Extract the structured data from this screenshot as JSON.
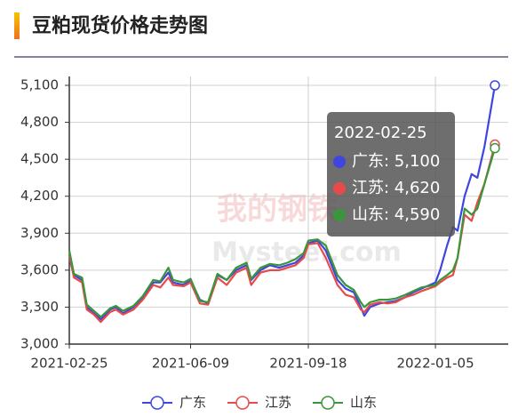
{
  "chart_data": {
    "type": "line",
    "title": "豆粕现货价格走势图",
    "x": [
      "2021-02-25",
      "2021-03-01",
      "2021-03-08",
      "2021-03-12",
      "2021-03-18",
      "2021-03-24",
      "2021-04-01",
      "2021-04-06",
      "2021-04-12",
      "2021-04-21",
      "2021-04-29",
      "2021-05-08",
      "2021-05-14",
      "2021-05-21",
      "2021-05-25",
      "2021-06-03",
      "2021-06-09",
      "2021-06-17",
      "2021-06-24",
      "2021-07-02",
      "2021-07-10",
      "2021-07-18",
      "2021-07-27",
      "2021-07-31",
      "2021-08-08",
      "2021-08-16",
      "2021-08-24",
      "2021-08-31",
      "2021-09-07",
      "2021-09-14",
      "2021-09-18",
      "2021-09-26",
      "2021-10-03",
      "2021-10-13",
      "2021-10-20",
      "2021-10-27",
      "2021-11-02",
      "2021-11-05",
      "2021-11-10",
      "2021-11-18",
      "2021-11-25",
      "2021-12-02",
      "2021-12-10",
      "2021-12-17",
      "2021-12-24",
      "2022-01-05",
      "2022-01-09",
      "2022-01-15",
      "2022-01-20",
      "2022-01-24",
      "2022-01-30",
      "2022-02-05",
      "2022-02-10",
      "2022-02-16",
      "2022-02-25"
    ],
    "series": [
      {
        "name": "广东",
        "color": "#3f46e0",
        "values": [
          3700,
          3560,
          3520,
          3300,
          3250,
          3200,
          3280,
          3300,
          3250,
          3300,
          3380,
          3500,
          3500,
          3580,
          3500,
          3480,
          3520,
          3360,
          3330,
          3560,
          3520,
          3600,
          3640,
          3520,
          3600,
          3640,
          3620,
          3640,
          3660,
          3720,
          3820,
          3840,
          3760,
          3520,
          3450,
          3420,
          3300,
          3230,
          3300,
          3330,
          3340,
          3350,
          3380,
          3420,
          3450,
          3500,
          3600,
          3800,
          3950,
          3920,
          4200,
          4380,
          4350,
          4600,
          5100
        ]
      },
      {
        "name": "江苏",
        "color": "#e84a4a",
        "values": [
          3720,
          3540,
          3500,
          3280,
          3240,
          3180,
          3260,
          3280,
          3240,
          3280,
          3360,
          3480,
          3460,
          3540,
          3480,
          3470,
          3500,
          3330,
          3320,
          3540,
          3480,
          3580,
          3620,
          3480,
          3580,
          3600,
          3600,
          3620,
          3640,
          3700,
          3810,
          3820,
          3700,
          3480,
          3400,
          3380,
          3280,
          3260,
          3320,
          3340,
          3330,
          3340,
          3380,
          3400,
          3430,
          3470,
          3500,
          3540,
          3560,
          3700,
          4050,
          4000,
          4150,
          4300,
          4620
        ]
      },
      {
        "name": "山东",
        "color": "#3a963a",
        "values": [
          3760,
          3570,
          3540,
          3320,
          3270,
          3220,
          3290,
          3310,
          3270,
          3310,
          3390,
          3520,
          3510,
          3620,
          3520,
          3500,
          3530,
          3350,
          3340,
          3570,
          3520,
          3620,
          3660,
          3530,
          3620,
          3650,
          3640,
          3660,
          3690,
          3740,
          3840,
          3850,
          3800,
          3560,
          3480,
          3440,
          3340,
          3300,
          3340,
          3360,
          3360,
          3370,
          3400,
          3430,
          3460,
          3480,
          3520,
          3560,
          3600,
          3700,
          4100,
          4050,
          4100,
          4300,
          4590
        ]
      }
    ],
    "xlim": [
      "2021-02-25",
      "2022-02-25"
    ],
    "xticks": [
      "2021-02-25",
      "2021-06-09",
      "2021-09-18",
      "2022-01-05"
    ],
    "ylim": [
      3000,
      5100
    ],
    "yticks": [
      {
        "value": 3000,
        "label": "3,000"
      },
      {
        "value": 3300,
        "label": "3,300"
      },
      {
        "value": 3600,
        "label": "3,600"
      },
      {
        "value": 3900,
        "label": "3,900"
      },
      {
        "value": 4200,
        "label": "4,200"
      },
      {
        "value": 4500,
        "label": "4,500"
      },
      {
        "value": 4800,
        "label": "4,800"
      },
      {
        "value": 5100,
        "label": "5,100"
      }
    ],
    "grid": true,
    "legend": "bottom",
    "tooltip": {
      "title": "2022-02-25",
      "items": [
        "广东: 5,100",
        "江苏: 4,620",
        "山东: 4,590"
      ]
    },
    "watermark": [
      "我的钢铁",
      "Mysteel.com"
    ]
  }
}
